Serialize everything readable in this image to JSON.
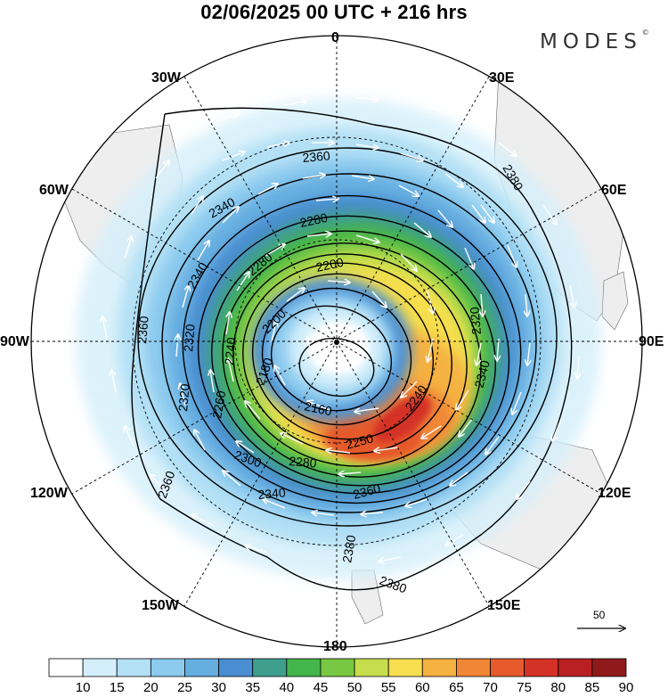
{
  "title": "02/06/2025  00 UTC  + 216 hrs",
  "brand": "MODES",
  "brand_mark": "©",
  "longitude_labels": {
    "lon_0": "0",
    "lon_30e": "30E",
    "lon_60e": "60E",
    "lon_90e": "90E",
    "lon_120e": "120E",
    "lon_150e": "150E",
    "lon_180": "180",
    "lon_150w": "150W",
    "lon_120w": "120W",
    "lon_90w": "90W",
    "lon_60w": "60W",
    "lon_30w": "30W"
  },
  "contour_labels": [
    "2160",
    "2180",
    "2200",
    "2200",
    "2240",
    "2240",
    "2250",
    "2260",
    "2280",
    "2280",
    "2280",
    "2300",
    "2320",
    "2320",
    "2320",
    "2340",
    "2340",
    "2340",
    "2340",
    "2360",
    "2360",
    "2360",
    "2360",
    "2380",
    "2380",
    "2380"
  ],
  "colorbar": {
    "ticks": [
      "10",
      "15",
      "20",
      "25",
      "30",
      "35",
      "40",
      "45",
      "50",
      "55",
      "60",
      "65",
      "70",
      "75",
      "80",
      "85",
      "90"
    ],
    "colors": [
      "#ffffff",
      "#d4effb",
      "#b3e0f5",
      "#8ccaee",
      "#66aee0",
      "#4a8dd0",
      "#3f9f8c",
      "#44b54a",
      "#79c844",
      "#c6de4c",
      "#f6de4e",
      "#f5b242",
      "#f08636",
      "#e65a2c",
      "#d43226",
      "#b91f23",
      "#8e1a1a"
    ]
  },
  "reference_vector_label": "50"
}
